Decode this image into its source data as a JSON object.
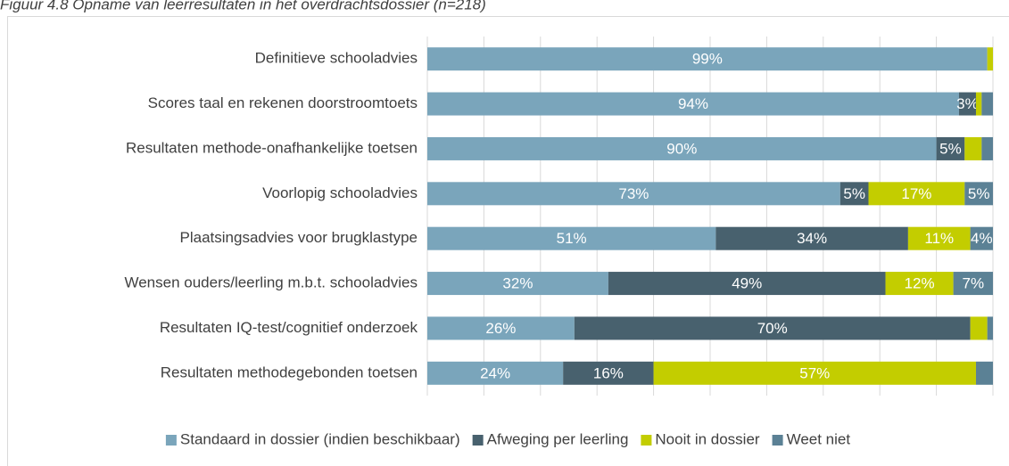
{
  "chart_data": {
    "type": "stacked-barh",
    "title": "Figuur 4.8 Opname van leerresultaten in het overdrachtsdossier (n=218)",
    "categories": [
      "Definitieve schooladvies",
      "Scores taal en rekenen doorstroomtoets",
      "Resultaten methode-onafhankelijke toetsen",
      "Voorlopig schooladvies",
      "Plaatsingsadvies voor brugklastype",
      "Wensen ouders/leerling m.b.t. schooladvies",
      "Resultaten IQ-test/cognitief onderzoek",
      "Resultaten methodegebonden toetsen"
    ],
    "series": [
      {
        "name": "Standaard in dossier (indien beschikbaar)",
        "color": "#7aa5bb",
        "values": [
          99,
          94,
          90,
          73,
          51,
          32,
          26,
          24
        ],
        "value_labels": [
          "99%",
          "94%",
          "90%",
          "73%",
          "51%",
          "32%",
          "26%",
          "24%"
        ]
      },
      {
        "name": "Afweging per leerling",
        "color": "#48616e",
        "values": [
          0,
          3,
          5,
          5,
          34,
          49,
          70,
          16
        ],
        "value_labels": [
          null,
          "3%",
          "5%",
          "5%",
          "34%",
          "49%",
          "70%",
          "16%"
        ]
      },
      {
        "name": "Nooit in dossier",
        "color": "#c3cd00",
        "values": [
          1,
          1,
          3,
          17,
          11,
          12,
          3,
          57
        ],
        "value_labels": [
          null,
          null,
          null,
          "17%",
          "11%",
          "12%",
          null,
          "57%"
        ]
      },
      {
        "name": "Weet niet",
        "color": "#5b8195",
        "values": [
          0,
          2,
          2,
          5,
          4,
          7,
          1,
          3
        ],
        "value_labels": [
          null,
          null,
          null,
          "5%",
          "4%",
          "7%",
          null,
          null
        ]
      }
    ],
    "xlim": [
      0,
      100
    ],
    "xticks": [
      0,
      10,
      20,
      30,
      40,
      50,
      60,
      70,
      80,
      90,
      100
    ],
    "grid": true,
    "legend": "bottom"
  }
}
